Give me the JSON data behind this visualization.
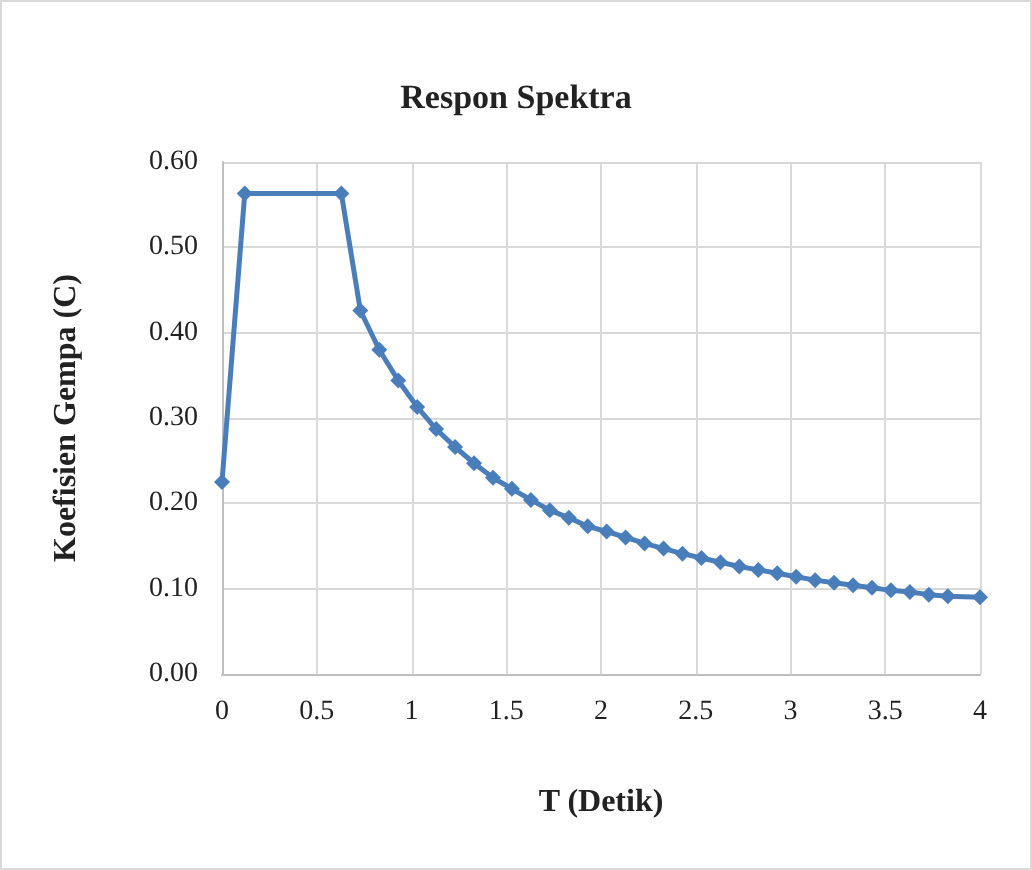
{
  "chart_data": {
    "type": "line",
    "title": "Respon Spektra",
    "xlabel": "T (Detik)",
    "ylabel": "Koefisien Gempa (C)",
    "x": [
      0,
      0.12,
      0.63,
      0.73,
      0.83,
      0.93,
      1.03,
      1.13,
      1.23,
      1.33,
      1.43,
      1.53,
      1.63,
      1.73,
      1.83,
      1.93,
      2.03,
      2.13,
      2.23,
      2.33,
      2.43,
      2.53,
      2.63,
      2.73,
      2.83,
      2.93,
      3.03,
      3.13,
      3.23,
      3.33,
      3.43,
      3.53,
      3.63,
      3.73,
      3.83,
      4.0
    ],
    "series": [
      {
        "color": "#4a7ebb",
        "values": [
          0.225,
          0.563,
          0.563,
          0.426,
          0.38,
          0.344,
          0.313,
          0.287,
          0.266,
          0.247,
          0.23,
          0.217,
          0.204,
          0.192,
          0.183,
          0.173,
          0.167,
          0.16,
          0.153,
          0.147,
          0.141,
          0.136,
          0.131,
          0.126,
          0.122,
          0.118,
          0.114,
          0.11,
          0.107,
          0.104,
          0.101,
          0.098,
          0.096,
          0.093,
          0.091,
          0.09
        ]
      }
    ],
    "xlim": [
      0,
      4
    ],
    "xticks": [
      0,
      0.5,
      1,
      1.5,
      2,
      2.5,
      3,
      3.5,
      4
    ],
    "ylim": [
      0,
      0.6
    ],
    "yticks": [
      {
        "value": 0,
        "label": "0.00"
      },
      {
        "value": 0.1,
        "label": "0.10"
      },
      {
        "value": 0.2,
        "label": "0.20"
      },
      {
        "value": 0.3,
        "label": "0.30"
      },
      {
        "value": 0.4,
        "label": "0.40"
      },
      {
        "value": 0.5,
        "label": "0.50"
      },
      {
        "value": 0.6,
        "label": "0.60"
      }
    ],
    "grid": true,
    "marker": "diamond",
    "line_style": "solid"
  }
}
